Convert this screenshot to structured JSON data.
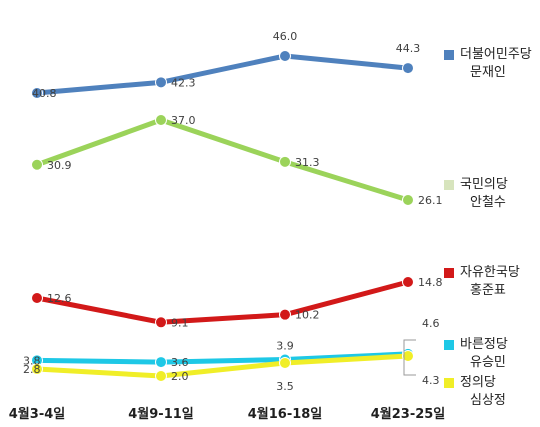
{
  "chart_data": {
    "type": "line",
    "categories": [
      "4월3-4일",
      "4월9-11일",
      "4월16-18일",
      "4월23-25일"
    ],
    "series": [
      {
        "key": "moon",
        "name": [
          "더불어민주당",
          "문재인"
        ],
        "color": "#4f81bd",
        "values": [
          40.8,
          42.3,
          46.0,
          44.3
        ],
        "labels": [
          "40.8",
          "42.3",
          "46.0",
          "44.3"
        ]
      },
      {
        "key": "ahn",
        "name": [
          "국민의당",
          "안철수"
        ],
        "color": "#9bd35a",
        "legend_color": "#d7e4bd",
        "values": [
          30.9,
          37.0,
          31.3,
          26.1
        ],
        "labels": [
          "30.9",
          "37.0",
          "31.3",
          "26.1"
        ]
      },
      {
        "key": "hong",
        "name": [
          "자유한국당",
          "홍준표"
        ],
        "color": "#d21919",
        "values": [
          12.6,
          9.1,
          10.2,
          14.8
        ],
        "labels": [
          "12.6",
          "9.1",
          "10.2",
          "14.8"
        ]
      },
      {
        "key": "yoo",
        "name": [
          "바른정당",
          "유승민"
        ],
        "color": "#1ec8e6",
        "values": [
          3.8,
          3.6,
          3.9,
          4.6
        ],
        "labels": [
          "3.8",
          "3.6",
          "3.9",
          "4.6"
        ]
      },
      {
        "key": "sim",
        "name": [
          "정의당",
          "심상정"
        ],
        "color": "#f0ee28",
        "values": [
          2.8,
          2.0,
          3.5,
          4.3
        ],
        "labels": [
          "2.8",
          "2.0",
          "3.5",
          "4.3"
        ]
      }
    ],
    "legend": "right",
    "grid": false
  }
}
